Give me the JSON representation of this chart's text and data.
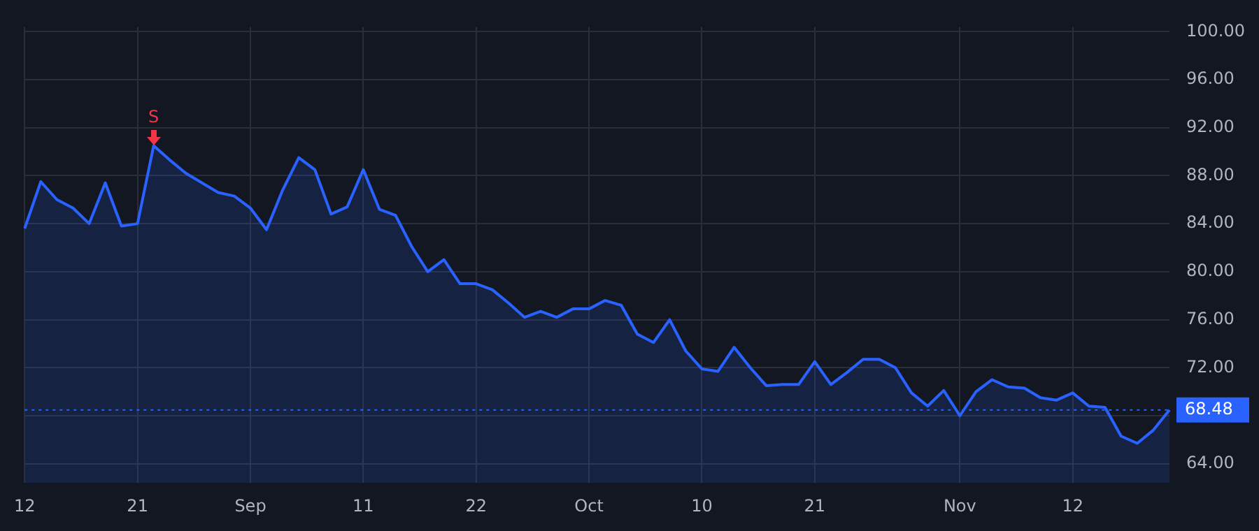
{
  "chart_data": {
    "type": "area",
    "categories": [
      "12",
      null,
      null,
      null,
      null,
      null,
      null,
      "21",
      null,
      null,
      null,
      null,
      null,
      null,
      "Sep",
      null,
      null,
      null,
      null,
      null,
      null,
      "11",
      null,
      null,
      null,
      null,
      null,
      null,
      "22",
      null,
      null,
      null,
      null,
      null,
      null,
      "Oct",
      null,
      null,
      null,
      null,
      null,
      null,
      "10",
      null,
      null,
      null,
      null,
      null,
      null,
      "21",
      null,
      null,
      null,
      null,
      null,
      null,
      null,
      null,
      "Nov",
      null,
      null,
      null,
      null,
      null,
      null,
      "12",
      null,
      null,
      null,
      null,
      null,
      null
    ],
    "series": [
      {
        "color": "#2962ff",
        "values": [
          83.6,
          87.5,
          86.0,
          85.3,
          84.0,
          87.4,
          83.8,
          84.0,
          90.5,
          89.3,
          88.2,
          87.4,
          86.6,
          86.3,
          85.3,
          83.5,
          86.8,
          89.5,
          88.5,
          84.8,
          85.4,
          88.5,
          85.2,
          84.7,
          82.1,
          80.0,
          81.0,
          79.0,
          79.0,
          78.5,
          77.4,
          76.2,
          76.7,
          76.2,
          76.9,
          76.9,
          77.6,
          77.2,
          74.8,
          74.1,
          76.0,
          73.4,
          71.9,
          71.7,
          73.7,
          72.0,
          70.5,
          70.6,
          70.6,
          72.5,
          70.6,
          71.6,
          72.7,
          72.7,
          72.0,
          69.9,
          68.8,
          70.1,
          68.0,
          70.0,
          71.0,
          70.4,
          70.3,
          69.5,
          69.3,
          69.9,
          68.8,
          68.7,
          66.3,
          65.7,
          66.8,
          68.48
        ]
      }
    ],
    "ylim": [
      62.4,
      100.4
    ],
    "yticks": [
      {
        "value": 64,
        "label": "64.00"
      },
      {
        "value": 68,
        "label": null
      },
      {
        "value": 72,
        "label": "72.00"
      },
      {
        "value": 76,
        "label": "76.00"
      },
      {
        "value": 80,
        "label": "80.00"
      },
      {
        "value": 84,
        "label": "84.00"
      },
      {
        "value": 88,
        "label": "88.00"
      },
      {
        "value": 92,
        "label": "92.00"
      },
      {
        "value": 96,
        "label": "96.00"
      },
      {
        "value": 100,
        "label": "100.00"
      }
    ],
    "ref_lines": [
      {
        "axis": "y",
        "value": 68.48,
        "label": "68.48",
        "color": "#2962ff",
        "line_style": "dotted"
      }
    ],
    "annotations": [
      {
        "text": "S",
        "y": 90.5
      }
    ],
    "grid": true,
    "legend": false,
    "marker": "none",
    "line_style": "solid"
  }
}
